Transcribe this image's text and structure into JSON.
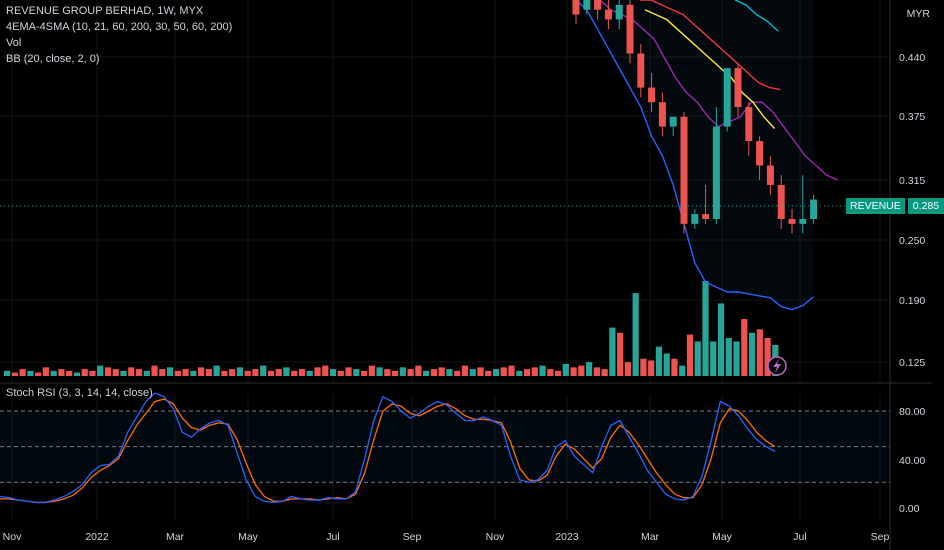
{
  "legend": {
    "title": "REVENUE GROUP BERHAD, 1W, MYX",
    "ema": "4EMA-4SMA (10, 21, 60, 200, 30, 50, 60, 200)",
    "vol": "Vol",
    "bb": "BB (20, close, 2, 0)"
  },
  "oscillator": {
    "label": "Stoch RSI (3, 3, 14, 14, close)"
  },
  "price_axis": {
    "currency": "MYR",
    "ticks": [
      "0.440",
      "0.375",
      "0.315",
      "0.250",
      "0.190",
      "0.125"
    ]
  },
  "osc_axis": {
    "ticks": [
      "80.00",
      "40.00",
      "0.00"
    ]
  },
  "time_axis": {
    "ticks": [
      "Nov",
      "2022",
      "Mar",
      "May",
      "Jul",
      "Sep",
      "Nov",
      "2023",
      "Mar",
      "May",
      "Jul",
      "Sep"
    ]
  },
  "last_price": {
    "symbol": "REVENUE",
    "value": "0.285"
  },
  "colors": {
    "up": "#26a69a",
    "down": "#ef5350",
    "bb": "#2962ff",
    "k": "#2962ff",
    "d": "#ff6d00",
    "ema1": "#9c27b0",
    "ema2": "#f23645",
    "ema3": "#ffeb3b",
    "ema4": "#00bcd4"
  },
  "chart_data": {
    "type": "candlestick",
    "price_range": [
      0.115,
      0.49
    ],
    "candles_2023": [
      {
        "o": 0.5,
        "h": 0.5,
        "c": 0.475,
        "l": 0.465
      },
      {
        "o": 0.48,
        "h": 0.5,
        "c": 0.49,
        "l": 0.475
      },
      {
        "o": 0.49,
        "h": 0.5,
        "c": 0.48,
        "l": 0.47
      },
      {
        "o": 0.48,
        "h": 0.5,
        "c": 0.47,
        "l": 0.46
      },
      {
        "o": 0.47,
        "h": 0.5,
        "c": 0.485,
        "l": 0.46
      },
      {
        "o": 0.485,
        "h": 0.5,
        "c": 0.435,
        "l": 0.425
      },
      {
        "o": 0.435,
        "h": 0.445,
        "c": 0.4,
        "l": 0.39
      },
      {
        "o": 0.4,
        "h": 0.415,
        "c": 0.385,
        "l": 0.375
      },
      {
        "o": 0.385,
        "h": 0.395,
        "c": 0.36,
        "l": 0.35
      },
      {
        "o": 0.36,
        "h": 0.37,
        "c": 0.37,
        "l": 0.35
      },
      {
        "o": 0.37,
        "h": 0.375,
        "c": 0.26,
        "l": 0.25
      },
      {
        "o": 0.26,
        "h": 0.275,
        "c": 0.27,
        "l": 0.255
      },
      {
        "o": 0.27,
        "h": 0.3,
        "c": 0.265,
        "l": 0.26
      },
      {
        "o": 0.265,
        "h": 0.38,
        "c": 0.36,
        "l": 0.26
      },
      {
        "o": 0.36,
        "h": 0.41,
        "c": 0.42,
        "l": 0.355
      },
      {
        "o": 0.42,
        "h": 0.425,
        "c": 0.38,
        "l": 0.37
      },
      {
        "o": 0.38,
        "h": 0.385,
        "c": 0.345,
        "l": 0.33
      },
      {
        "o": 0.345,
        "h": 0.35,
        "c": 0.32,
        "l": 0.305
      },
      {
        "o": 0.32,
        "h": 0.33,
        "c": 0.3,
        "l": 0.29
      },
      {
        "o": 0.3,
        "h": 0.31,
        "c": 0.265,
        "l": 0.255
      },
      {
        "o": 0.265,
        "h": 0.275,
        "c": 0.26,
        "l": 0.25
      },
      {
        "o": 0.26,
        "h": 0.31,
        "c": 0.265,
        "l": 0.25
      },
      {
        "o": 0.265,
        "h": 0.29,
        "c": 0.285,
        "l": 0.26
      }
    ],
    "bb_lower": [
      0.49,
      0.48,
      0.46,
      0.44,
      0.42,
      0.4,
      0.38,
      0.35,
      0.33,
      0.3,
      0.26,
      0.22,
      0.2,
      0.195,
      0.19,
      0.19,
      0.188,
      0.186,
      0.184,
      0.175,
      0.172,
      0.176,
      0.185
    ],
    "ema_purple": [
      0.49,
      0.48,
      0.475,
      0.47,
      0.46,
      0.45,
      0.43,
      0.41,
      0.395,
      0.385,
      0.37,
      0.36,
      0.365,
      0.37,
      0.385,
      0.385,
      0.375,
      0.36,
      0.345,
      0.33,
      0.32,
      0.31,
      0.305
    ],
    "ema_red": [
      0.49,
      0.49,
      0.485,
      0.48,
      0.475,
      0.465,
      0.455,
      0.445,
      0.435,
      0.425,
      0.415,
      0.405,
      0.4,
      0.398
    ],
    "ema_yellow": [
      0.48,
      0.475,
      0.47,
      0.46,
      0.45,
      0.44,
      0.43,
      0.42,
      0.41,
      0.395,
      0.385,
      0.37,
      0.358
    ],
    "ema_cyan": [
      0.49,
      0.485,
      0.475,
      0.468,
      0.458
    ],
    "volume": [
      3,
      2,
      4,
      3,
      2,
      5,
      3,
      4,
      3,
      2,
      4,
      3,
      6,
      5,
      4,
      3,
      5,
      4,
      3,
      6,
      4,
      5,
      3,
      4,
      3,
      5,
      4,
      6,
      3,
      4,
      5,
      3,
      4,
      6,
      3,
      4,
      5,
      3,
      4,
      3,
      5,
      6,
      4,
      3,
      5,
      4,
      3,
      6,
      5,
      4,
      3,
      5,
      4,
      6,
      3,
      4,
      5,
      4,
      3,
      6,
      4,
      5,
      3,
      4,
      5,
      6,
      3,
      4,
      5,
      6,
      4,
      3,
      7,
      5,
      6,
      8,
      5,
      4,
      28,
      25,
      8,
      48,
      10,
      9,
      17,
      13,
      10,
      6,
      24,
      20,
      55,
      20,
      42,
      22,
      20,
      33,
      25,
      27,
      22,
      18
    ],
    "stoch_k": [
      8,
      7,
      5,
      4,
      3,
      3,
      5,
      8,
      12,
      18,
      28,
      34,
      35,
      42,
      62,
      75,
      88,
      95,
      92,
      82,
      62,
      58,
      65,
      70,
      72,
      68,
      45,
      22,
      8,
      4,
      3,
      4,
      8,
      6,
      5,
      5,
      7,
      6,
      6,
      12,
      40,
      72,
      92,
      88,
      80,
      74,
      78,
      84,
      88,
      85,
      78,
      72,
      72,
      75,
      72,
      68,
      42,
      22,
      20,
      22,
      30,
      50,
      55,
      42,
      35,
      28,
      50,
      68,
      72,
      58,
      45,
      30,
      20,
      10,
      6,
      5,
      8,
      25,
      55,
      88,
      84,
      76,
      65,
      56,
      50,
      46
    ],
    "stoch_d": [
      6,
      6,
      5,
      4,
      3,
      3,
      4,
      6,
      9,
      15,
      24,
      30,
      34,
      40,
      55,
      68,
      78,
      88,
      90,
      86,
      74,
      66,
      64,
      68,
      70,
      69,
      56,
      36,
      18,
      8,
      4,
      4,
      6,
      6,
      6,
      5,
      6,
      7,
      6,
      10,
      28,
      56,
      80,
      86,
      84,
      78,
      76,
      80,
      84,
      86,
      82,
      76,
      73,
      73,
      72,
      70,
      54,
      32,
      22,
      21,
      26,
      42,
      52,
      48,
      40,
      32,
      40,
      58,
      68,
      62,
      52,
      40,
      28,
      18,
      10,
      7,
      7,
      18,
      40,
      70,
      82,
      80,
      72,
      62,
      55,
      50
    ]
  }
}
